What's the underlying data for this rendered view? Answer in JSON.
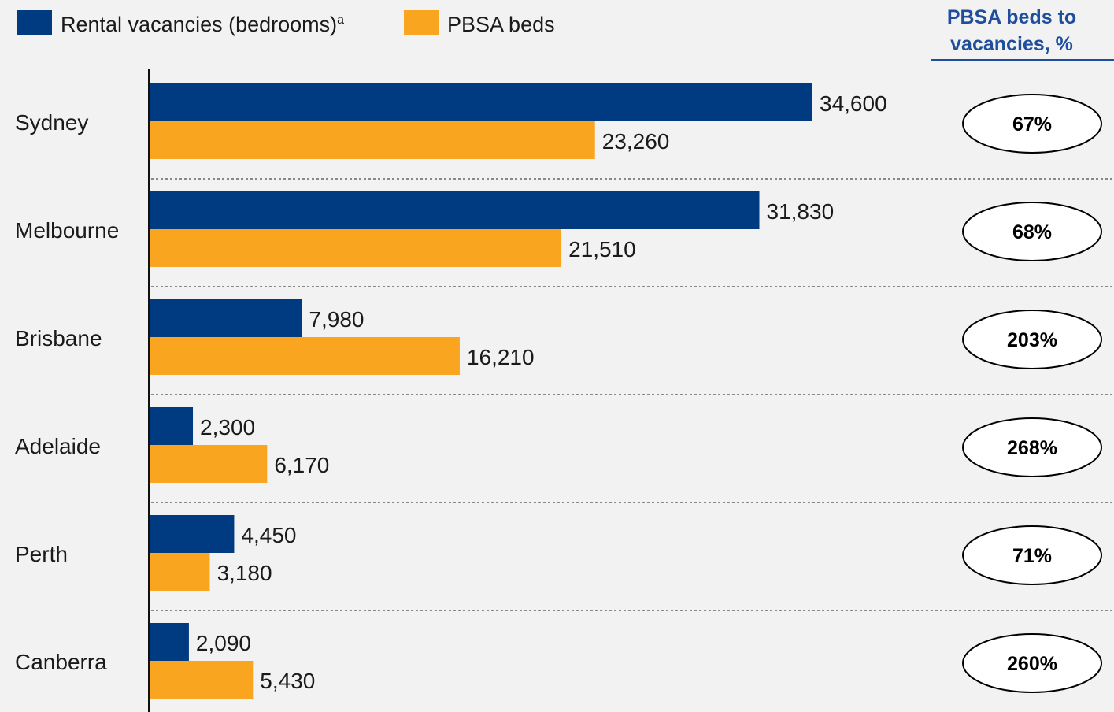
{
  "chart_data": {
    "type": "bar",
    "orientation": "horizontal",
    "categories": [
      "Sydney",
      "Melbourne",
      "Brisbane",
      "Adelaide",
      "Perth",
      "Canberra"
    ],
    "series": [
      {
        "name": "Rental vacancies (bedrooms)",
        "name_superscript": "a",
        "color": "#003a80",
        "values": [
          34600,
          31830,
          7980,
          2300,
          4450,
          2090
        ],
        "labels": [
          "34,600",
          "31,830",
          "7,980",
          "2,300",
          "4,450",
          "2,090"
        ]
      },
      {
        "name": "PBSA beds",
        "color": "#f9a51f",
        "values": [
          23260,
          21510,
          16210,
          6170,
          3180,
          5430
        ],
        "labels": [
          "23,260",
          "21,510",
          "16,210",
          "6,170",
          "3,180",
          "5,430"
        ]
      }
    ],
    "ratio_header": [
      "PBSA beds to",
      "vacancies, %"
    ],
    "ratios": [
      "67%",
      "68%",
      "203%",
      "268%",
      "71%",
      "260%"
    ],
    "xlim": [
      0,
      34600
    ],
    "legend_position": "top-left",
    "grid": false
  }
}
